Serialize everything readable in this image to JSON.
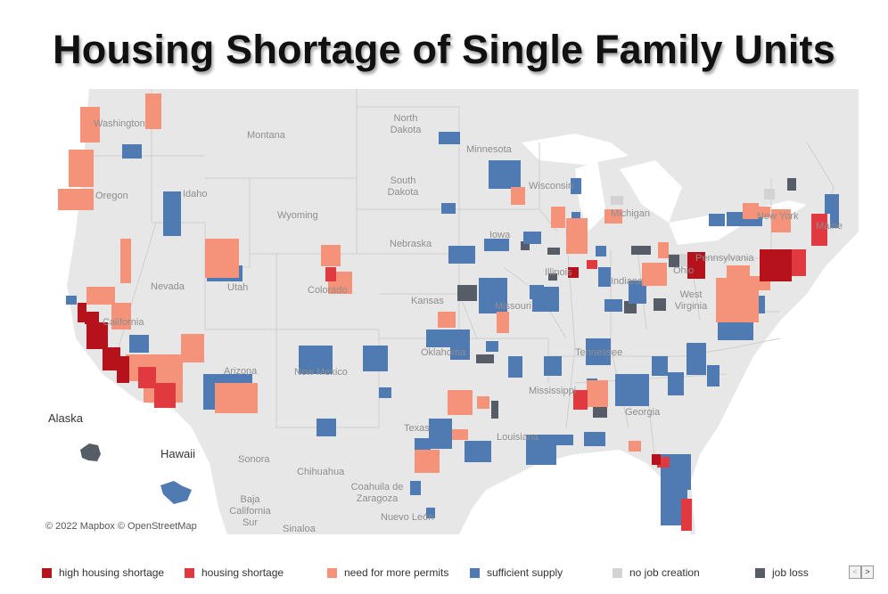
{
  "title": "Housing Shortage of Single Family Units",
  "map": {
    "attribution": "© 2022 Mapbox  © OpenStreetMap",
    "insets": {
      "alaska": "Alaska",
      "hawaii": "Hawaii"
    },
    "place_labels": [
      "Washington",
      "Oregon",
      "Idaho",
      "Montana",
      "Wyoming",
      "North Dakota",
      "South Dakota",
      "Nebraska",
      "Minnesota",
      "Wisconsin",
      "Michigan",
      "Iowa",
      "Illinois",
      "Nevada",
      "California",
      "Utah",
      "Colorado",
      "Kansas",
      "Missouri",
      "Arizona",
      "New Mexico",
      "Oklahoma",
      "Texas",
      "Louisiana",
      "Mississippi",
      "Tennessee",
      "Georgia",
      "Ohio",
      "Indiana",
      "Pennsylvania",
      "West Virginia",
      "New York",
      "Maine",
      "Sonora",
      "Chihuahua",
      "Coahuila de Zaragoza",
      "Nuevo León",
      "Sinaloa",
      "Baja California Sur"
    ]
  },
  "legend": [
    {
      "label": "high housing shortage",
      "color": "#b5121b"
    },
    {
      "label": "housing shortage",
      "color": "#e03a40"
    },
    {
      "label": "need for more permits",
      "color": "#f5927a"
    },
    {
      "label": "sufficient supply",
      "color": "#4f7ab2"
    },
    {
      "label": "no job creation",
      "color": "#d3d3d3"
    },
    {
      "label": "job loss",
      "color": "#565d67"
    }
  ],
  "pager": {
    "prev": "<",
    "next": ">"
  }
}
